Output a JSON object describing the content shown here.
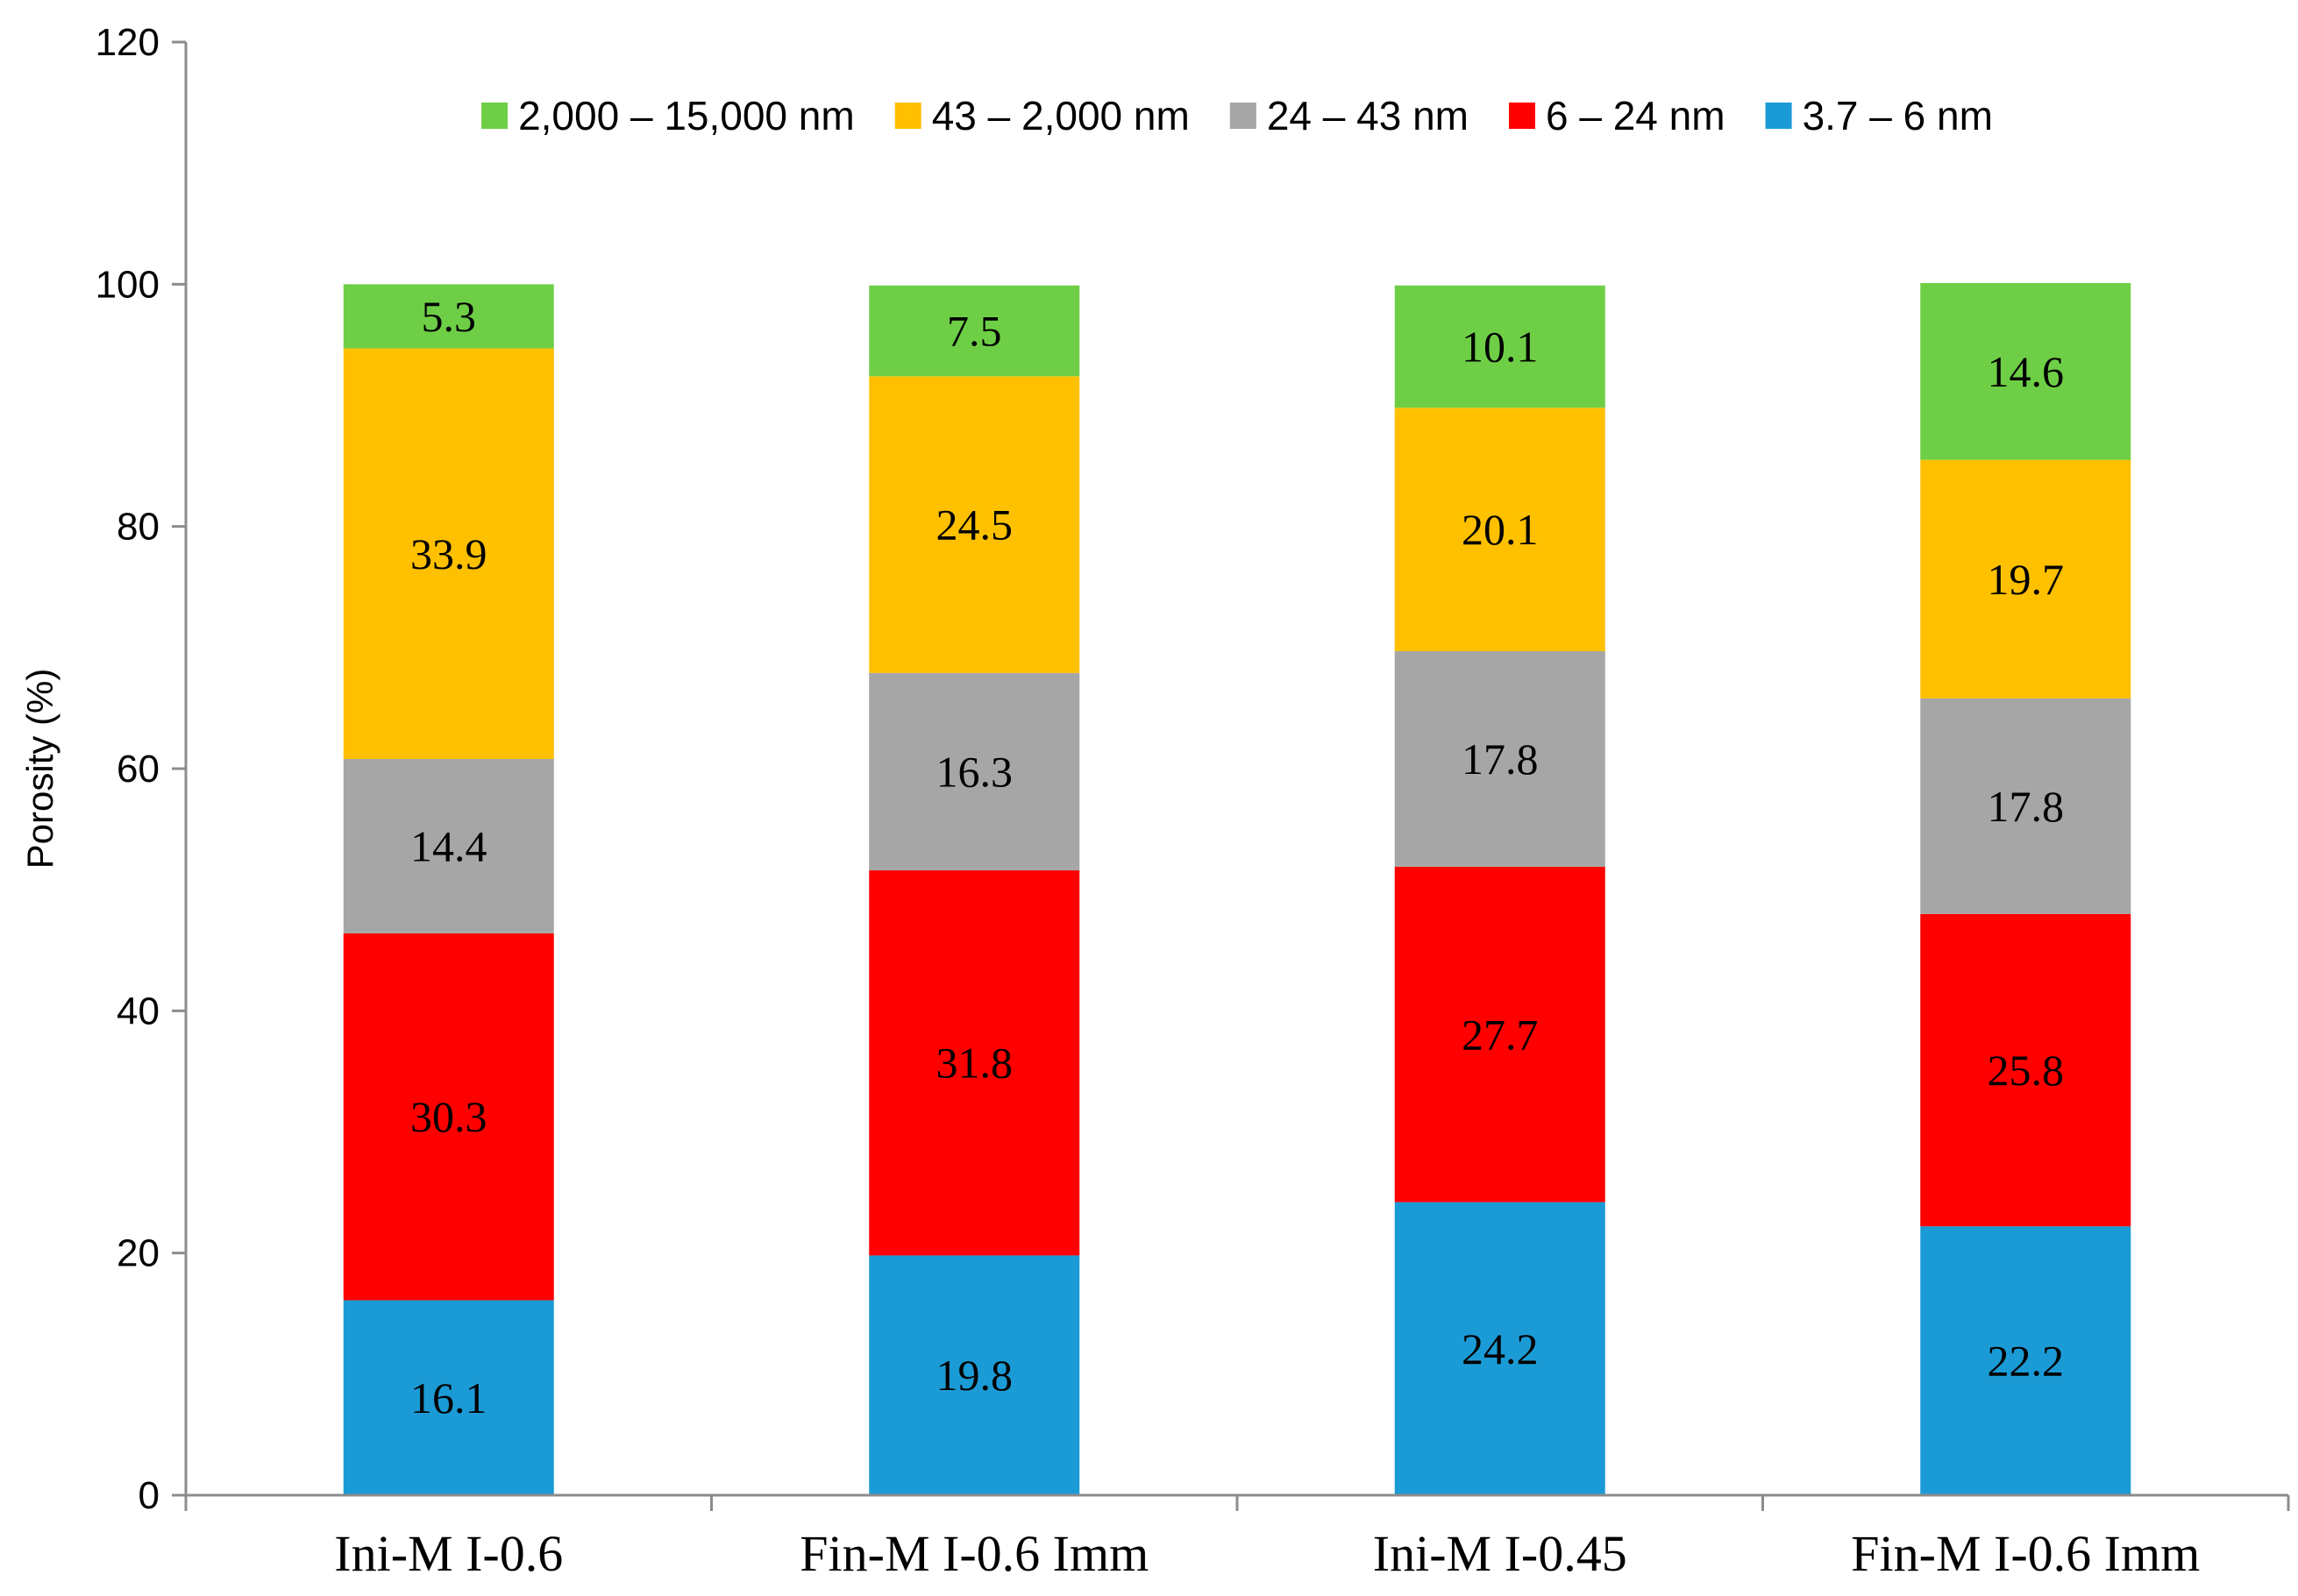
{
  "chart_data": {
    "type": "bar",
    "stacked": true,
    "ylabel": "Porosity (%)",
    "xlabel": "",
    "ylim": [
      0,
      120
    ],
    "yticks": [
      0,
      20,
      40,
      60,
      80,
      100,
      120
    ],
    "grid": false,
    "legend_position": "top",
    "categories": [
      "Ini-M I-0.6",
      "Fin-M I-0.6 Imm",
      "Ini-M I-0.45",
      "Fin-M I-0.6 Imm"
    ],
    "series": [
      {
        "name": "3.7 – 6 nm",
        "color": "#1b9bd6",
        "values": [
          16.1,
          19.8,
          24.2,
          22.2
        ],
        "labels": [
          "16.1",
          "19.8",
          "24.2",
          "22.2"
        ]
      },
      {
        "name": "6 – 24 nm",
        "color": "#ff0000",
        "values": [
          30.3,
          31.8,
          27.7,
          25.8
        ],
        "labels": [
          "30.3",
          "31.8",
          "27.7",
          "25.8"
        ]
      },
      {
        "name": "24 – 43 nm",
        "color": "#a6a6a6",
        "values": [
          14.4,
          16.3,
          17.8,
          17.8
        ],
        "labels": [
          "14.4",
          "16.3",
          "17.8",
          "17.8"
        ]
      },
      {
        "name": "43 – 2,000 nm",
        "color": "#ffc000",
        "values": [
          33.9,
          24.5,
          20.1,
          19.7
        ],
        "labels": [
          "33.9",
          "24.5",
          "20.1",
          "19.7"
        ]
      },
      {
        "name": "2,000 – 15,000 nm",
        "color": "#6ecf46",
        "values": [
          5.3,
          7.5,
          10.1,
          14.6
        ],
        "labels": [
          "5.3",
          "7.5",
          "10.1",
          "14.6"
        ]
      }
    ],
    "legend_order": [
      "2,000 – 15,000 nm",
      "43 – 2,000 nm",
      "24 – 43 nm",
      "6 – 24 nm",
      "3.7 – 6 nm"
    ]
  }
}
